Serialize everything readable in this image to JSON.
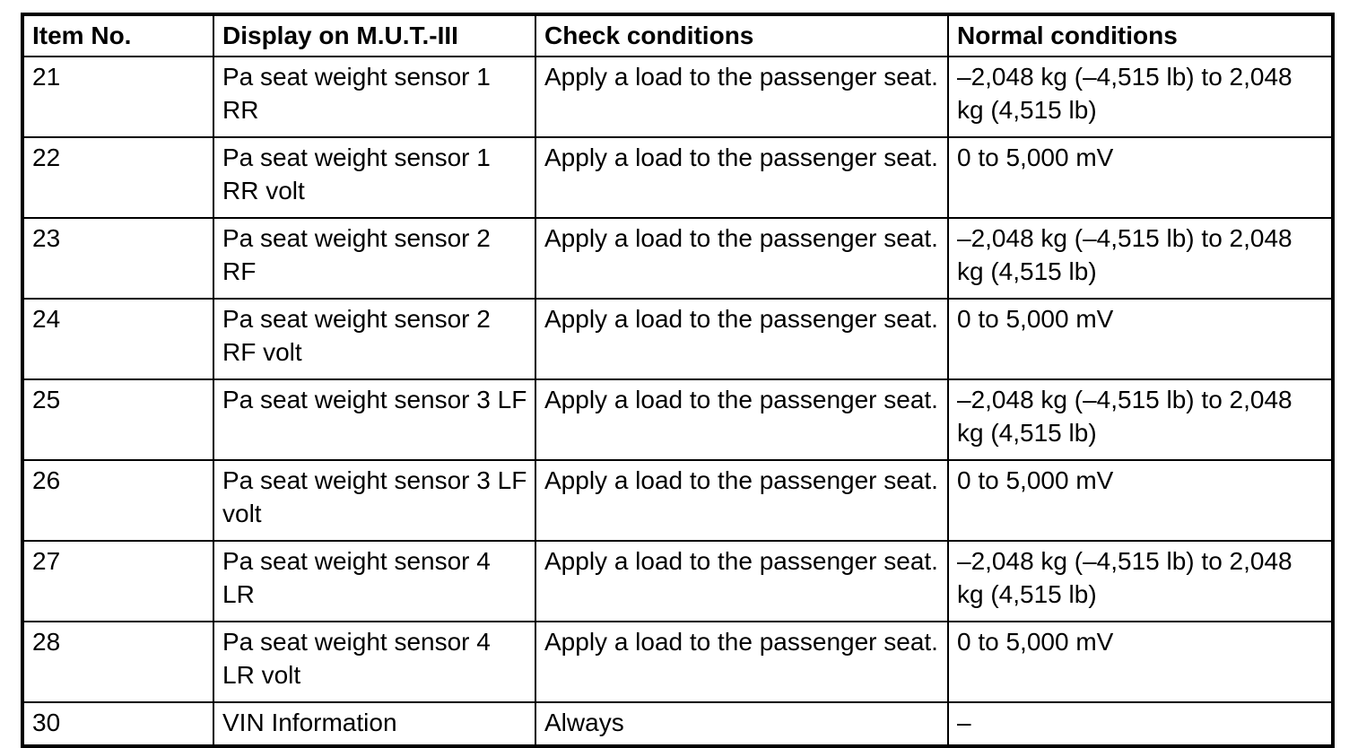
{
  "table": {
    "headers": {
      "item_no": "Item No.",
      "display": "Display on M.U.T.-III",
      "check": "Check conditions",
      "normal": "Normal conditions"
    },
    "rows": [
      {
        "item_no": "21",
        "display": "Pa seat weight sensor 1 RR",
        "check": "Apply a load to the passenger seat.",
        "normal": "–2,048 kg (–4,515 lb) to 2,048 kg (4,515 lb)"
      },
      {
        "item_no": "22",
        "display": "Pa seat weight sensor 1 RR volt",
        "check": "Apply a load to the passenger seat.",
        "normal": "0 to 5,000 mV"
      },
      {
        "item_no": "23",
        "display": "Pa seat weight sensor 2 RF",
        "check": "Apply a load to the passenger seat.",
        "normal": "–2,048 kg (–4,515 lb) to 2,048 kg (4,515 lb)"
      },
      {
        "item_no": "24",
        "display": "Pa seat weight sensor 2 RF volt",
        "check": "Apply a load to the passenger seat.",
        "normal": "0 to 5,000 mV"
      },
      {
        "item_no": "25",
        "display": "Pa seat weight sensor 3 LF",
        "check": "Apply a load to the passenger seat.",
        "normal": "–2,048 kg (–4,515 lb) to 2,048 kg (4,515 lb)"
      },
      {
        "item_no": "26",
        "display": "Pa seat weight sensor 3 LF volt",
        "check": "Apply a load to the passenger seat.",
        "normal": "0 to 5,000 mV"
      },
      {
        "item_no": "27",
        "display": "Pa seat weight sensor 4 LR",
        "check": "Apply a load to the passenger seat.",
        "normal": "–2,048 kg (–4,515 lb) to 2,048 kg (4,515 lb)"
      },
      {
        "item_no": "28",
        "display": "Pa seat weight sensor 4 LR volt",
        "check": "Apply a load to the passenger seat.",
        "normal": "0 to 5,000 mV"
      },
      {
        "item_no": "30",
        "display": "VIN Information",
        "check": "Always",
        "normal": "–"
      }
    ]
  },
  "colors": {
    "border": "#000000",
    "background": "#ffffff",
    "text": "#000000"
  }
}
